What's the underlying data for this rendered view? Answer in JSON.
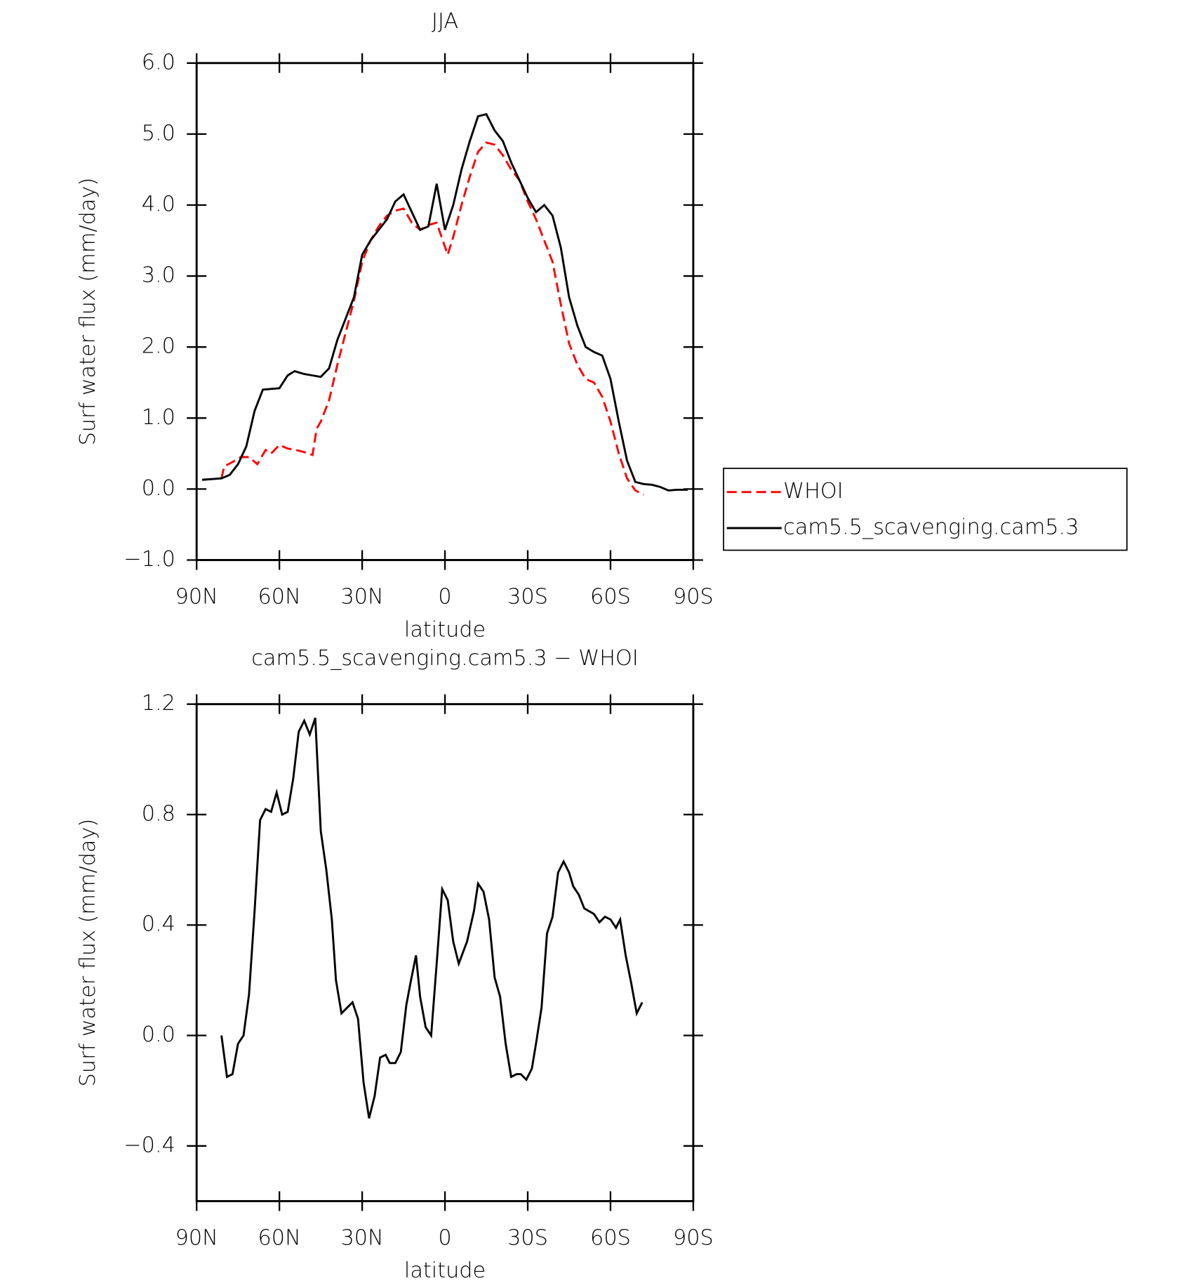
{
  "chart_data": [
    {
      "type": "line",
      "title": "JJA",
      "xlabel": "latitude",
      "ylabel": "Surf water flux (mm/day)",
      "xlim": [
        90,
        -90
      ],
      "xticks": [
        {
          "value": 90,
          "label": "90N"
        },
        {
          "value": 60,
          "label": "60N"
        },
        {
          "value": 30,
          "label": "30N"
        },
        0,
        {
          "value": -30,
          "label": "30S"
        },
        {
          "value": -60,
          "label": "60S"
        },
        {
          "value": -90,
          "label": "90S"
        }
      ],
      "ylim": [
        -1,
        6
      ],
      "yticks": [
        {
          "value": -1,
          "label": "−1.0"
        },
        {
          "value": 0,
          "label": "0.0"
        },
        {
          "value": 1,
          "label": "1.0"
        },
        {
          "value": 2,
          "label": "2.0"
        },
        {
          "value": 3,
          "label": "3.0"
        },
        {
          "value": 4,
          "label": "4.0"
        },
        {
          "value": 5,
          "label": "5.0"
        },
        {
          "value": 6,
          "label": "6.0"
        }
      ],
      "legend": "right",
      "series": [
        {
          "name": "WHOI",
          "color": "#ff0000",
          "dash": true,
          "x": [
            81,
            80,
            77,
            74,
            71,
            68,
            65,
            63,
            60,
            57,
            54,
            51,
            48,
            46.5,
            45,
            42,
            39,
            36,
            33,
            30,
            27,
            24,
            21,
            18,
            15,
            12,
            9,
            6,
            3,
            -1,
            -3,
            -6,
            -9,
            -12,
            -15,
            -18,
            -21,
            -24,
            -27,
            -30,
            -33,
            -36,
            -39,
            -42,
            -45,
            -48,
            -51,
            -54,
            -57,
            -60,
            -63,
            -66,
            -69,
            -72
          ],
          "values": [
            0.15,
            0.32,
            0.38,
            0.45,
            0.45,
            0.35,
            0.55,
            0.5,
            0.62,
            0.57,
            0.55,
            0.52,
            0.48,
            0.85,
            0.95,
            1.25,
            1.75,
            2.2,
            2.65,
            3.2,
            3.5,
            3.7,
            3.85,
            3.92,
            3.95,
            3.75,
            3.65,
            3.72,
            3.75,
            3.3,
            3.55,
            4.0,
            4.4,
            4.75,
            4.88,
            4.85,
            4.7,
            4.5,
            4.35,
            4.05,
            3.8,
            3.5,
            3.2,
            2.6,
            2.05,
            1.75,
            1.55,
            1.5,
            1.3,
            0.95,
            0.5,
            0.15,
            -0.02,
            -0.08
          ]
        },
        {
          "name": "cam5.5_scavenging.cam5.3",
          "color": "#000000",
          "dash": false,
          "x": [
            88,
            81,
            78,
            75,
            72,
            69,
            66,
            63,
            60,
            57,
            54.5,
            51,
            48,
            45,
            42,
            39,
            36,
            33,
            30,
            27,
            24,
            21,
            18,
            15,
            12,
            9,
            6,
            3,
            0,
            -3,
            -6,
            -9,
            -12,
            -15,
            -18,
            -21,
            -24,
            -27,
            -30,
            -33,
            -36,
            -39,
            -42,
            -45,
            -48,
            -51,
            -54,
            -57,
            -60,
            -63,
            -66,
            -69,
            -72,
            -75,
            -78,
            -81,
            -84,
            -88
          ],
          "values": [
            0.13,
            0.15,
            0.2,
            0.35,
            0.6,
            1.1,
            1.4,
            1.41,
            1.42,
            1.6,
            1.66,
            1.62,
            1.6,
            1.58,
            1.7,
            2.1,
            2.4,
            2.7,
            3.3,
            3.5,
            3.65,
            3.8,
            4.05,
            4.15,
            3.9,
            3.65,
            3.7,
            4.3,
            3.65,
            4.0,
            4.5,
            4.9,
            5.25,
            5.28,
            5.05,
            4.9,
            4.6,
            4.35,
            4.1,
            3.9,
            4.0,
            3.85,
            3.4,
            2.7,
            2.3,
            2.0,
            1.93,
            1.88,
            1.55,
            0.95,
            0.4,
            0.1,
            0.07,
            0.06,
            0.03,
            -0.02,
            -0.01,
            -0.01
          ]
        }
      ]
    },
    {
      "type": "line",
      "title": "cam5.5_scavenging.cam5.3 − WHOI",
      "xlabel": "latitude",
      "ylabel": "Surf water flux (mm/day)",
      "xlim": [
        90,
        -90
      ],
      "xticks": [
        {
          "value": 90,
          "label": "90N"
        },
        {
          "value": 60,
          "label": "60N"
        },
        {
          "value": 30,
          "label": "30N"
        },
        0,
        {
          "value": -30,
          "label": "30S"
        },
        {
          "value": -60,
          "label": "60S"
        },
        {
          "value": -90,
          "label": "90S"
        }
      ],
      "ylim": [
        -0.6,
        1.2
      ],
      "yticks": [
        {
          "value": -0.4,
          "label": "−0.4"
        },
        {
          "value": 0,
          "label": "0.0"
        },
        0.4,
        0.8,
        1.2
      ],
      "series": [
        {
          "color": "#000000",
          "dash": false,
          "x": [
            81,
            79,
            77,
            75,
            73,
            71,
            69,
            67,
            65,
            63,
            61,
            59,
            57,
            55,
            53,
            51,
            49,
            47,
            45,
            43,
            41,
            39.5,
            37.5,
            35.5,
            33.5,
            31.5,
            29.5,
            27.5,
            25.5,
            23.5,
            21.5,
            20,
            18,
            16,
            14,
            12.5,
            10.5,
            9,
            7,
            5,
            3,
            1,
            -1,
            -3,
            -5,
            -8,
            -10.5,
            -12,
            -14,
            -16,
            -18,
            -20,
            -22,
            -24,
            -26,
            -27.5,
            -29.5,
            -31.5,
            -33,
            -35,
            -37,
            -39,
            -41,
            -43,
            -45,
            -46.5,
            -48.5,
            -50.5,
            -54,
            -56,
            -58,
            -60,
            -62,
            -63.5,
            -65.5,
            -67.5,
            -69.5,
            -71.5
          ],
          "values": [
            0.0,
            -0.15,
            -0.14,
            -0.03,
            0.0,
            0.15,
            0.45,
            0.78,
            0.82,
            0.81,
            0.88,
            0.8,
            0.81,
            0.93,
            1.1,
            1.14,
            1.09,
            1.15,
            0.74,
            0.6,
            0.42,
            0.2,
            0.08,
            0.1,
            0.12,
            0.06,
            -0.17,
            -0.3,
            -0.22,
            -0.08,
            -0.07,
            -0.1,
            -0.1,
            -0.06,
            0.11,
            0.19,
            0.29,
            0.14,
            0.03,
            0.0,
            0.26,
            0.53,
            0.49,
            0.34,
            0.26,
            0.34,
            0.45,
            0.55,
            0.52,
            0.42,
            0.21,
            0.14,
            -0.03,
            -0.15,
            -0.14,
            -0.14,
            -0.16,
            -0.12,
            -0.03,
            0.1,
            0.37,
            0.43,
            0.59,
            0.63,
            0.59,
            0.54,
            0.51,
            0.46,
            0.44,
            0.41,
            0.43,
            0.42,
            0.39,
            0.42,
            0.29,
            0.19,
            0.08,
            0.12
          ]
        }
      ]
    }
  ]
}
